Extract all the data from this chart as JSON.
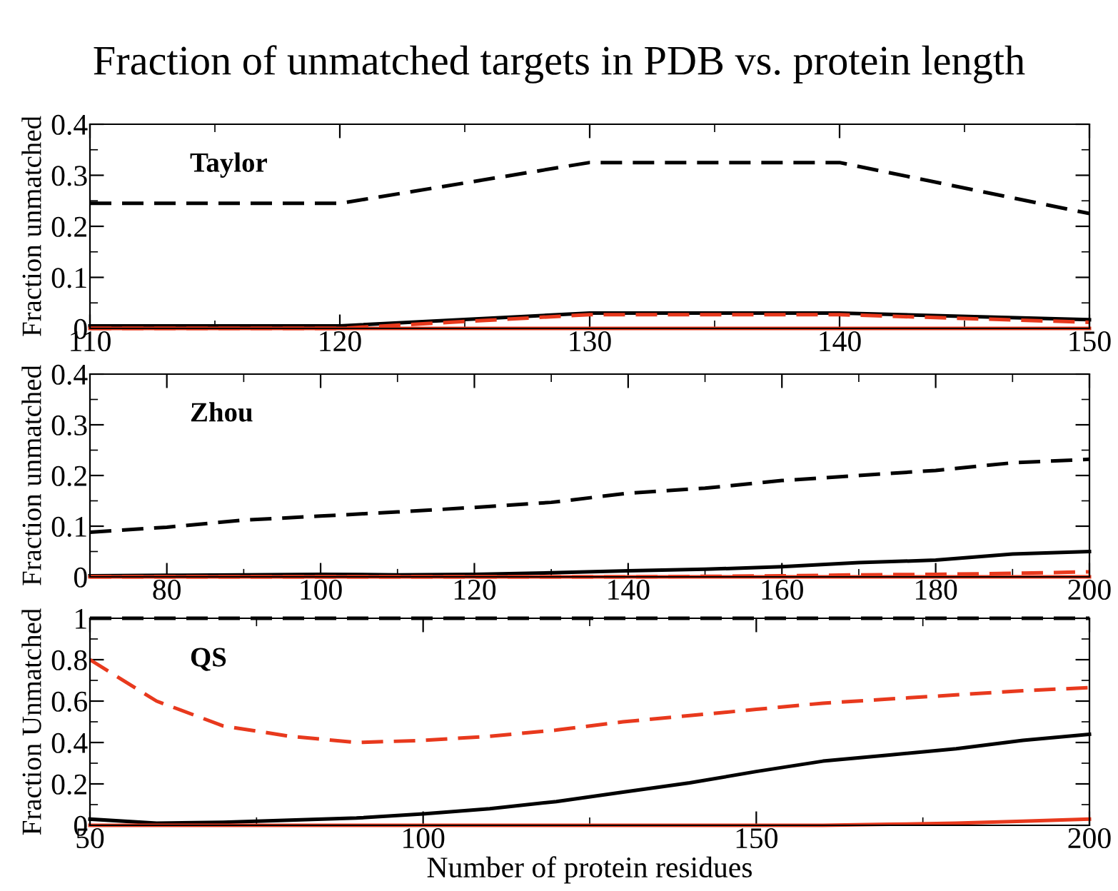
{
  "chart_data": [
    {
      "type": "line",
      "title": "Fraction of unmatched targets in PDB vs. protein length",
      "ylabel": "Fraction unmatched",
      "annotations": [
        "Taylor"
      ],
      "x": [
        110,
        120,
        130,
        140,
        150
      ],
      "xlim": [
        110,
        150
      ],
      "xticks": [
        110,
        120,
        130,
        140,
        150
      ],
      "ylim": [
        0,
        0.4
      ],
      "yticks": [
        0,
        0.1,
        0.2,
        0.3,
        0.4
      ],
      "grid": false,
      "marker": "none",
      "series": [
        {
          "color": "#000000",
          "line_style": "dashed",
          "values": [
            0.245,
            0.245,
            0.325,
            0.325,
            0.225
          ]
        },
        {
          "color": "#000000",
          "line_style": "solid",
          "values": [
            0.005,
            0.005,
            0.03,
            0.03,
            0.017
          ]
        },
        {
          "color": "#e8391d",
          "line_style": "dashed",
          "values": [
            0,
            0,
            0.027,
            0.027,
            0.012
          ]
        },
        {
          "color": "#e8391d",
          "line_style": "solid",
          "values": [
            0,
            0,
            0,
            0,
            0
          ]
        }
      ]
    },
    {
      "type": "line",
      "ylabel": "Fraction unmatched",
      "annotations": [
        "Zhou"
      ],
      "x": [
        70,
        80,
        90,
        100,
        110,
        120,
        130,
        140,
        150,
        160,
        170,
        180,
        190,
        200
      ],
      "xlim": [
        70,
        200
      ],
      "xticks": [
        80,
        100,
        120,
        140,
        160,
        180,
        200
      ],
      "ylim": [
        0,
        0.4
      ],
      "yticks": [
        0,
        0.1,
        0.2,
        0.3,
        0.4
      ],
      "grid": false,
      "marker": "none",
      "series": [
        {
          "color": "#000000",
          "line_style": "dashed",
          "values": [
            0.088,
            0.098,
            0.112,
            0.12,
            0.128,
            0.137,
            0.147,
            0.165,
            0.175,
            0.19,
            0.2,
            0.21,
            0.225,
            0.232
          ]
        },
        {
          "color": "#000000",
          "line_style": "solid",
          "values": [
            0.002,
            0.003,
            0.004,
            0.005,
            0.004,
            0.005,
            0.008,
            0.012,
            0.015,
            0.02,
            0.028,
            0.033,
            0.045,
            0.05
          ]
        },
        {
          "color": "#e8391d",
          "line_style": "dashed",
          "values": [
            0,
            0,
            0,
            0,
            0,
            0,
            0,
            0,
            0.001,
            0.002,
            0.004,
            0.005,
            0.007,
            0.01
          ]
        },
        {
          "color": "#e8391d",
          "line_style": "solid",
          "values": [
            0,
            0,
            0,
            0,
            0,
            0,
            0,
            0,
            0,
            0,
            0,
            0,
            0,
            0
          ]
        }
      ]
    },
    {
      "type": "line",
      "ylabel": "Fraction Unmatched",
      "xlabel": "Number of protein residues",
      "annotations": [
        "QS"
      ],
      "x": [
        50,
        60,
        70,
        80,
        90,
        100,
        110,
        120,
        130,
        140,
        150,
        160,
        170,
        180,
        190,
        200
      ],
      "xlim": [
        50,
        200
      ],
      "xticks": [
        50,
        100,
        150,
        200
      ],
      "ylim": [
        0,
        1
      ],
      "yticks": [
        0,
        0.2,
        0.4,
        0.6,
        0.8,
        1
      ],
      "grid": false,
      "marker": "none",
      "series": [
        {
          "color": "#000000",
          "line_style": "dashed",
          "values": [
            1,
            1,
            1,
            1,
            1,
            1,
            1,
            1,
            1,
            1,
            1,
            1,
            1,
            1,
            1,
            1
          ]
        },
        {
          "color": "#000000",
          "line_style": "solid",
          "values": [
            0.03,
            0.01,
            0.015,
            0.025,
            0.035,
            0.055,
            0.08,
            0.115,
            0.16,
            0.205,
            0.26,
            0.31,
            0.34,
            0.37,
            0.41,
            0.44
          ]
        },
        {
          "color": "#e8391d",
          "line_style": "dashed",
          "values": [
            0.8,
            0.6,
            0.48,
            0.43,
            0.4,
            0.41,
            0.43,
            0.46,
            0.5,
            0.53,
            0.56,
            0.59,
            0.61,
            0.63,
            0.65,
            0.665
          ]
        },
        {
          "color": "#e8391d",
          "line_style": "solid",
          "values": [
            0,
            0,
            0,
            0,
            0,
            0,
            0,
            0,
            0,
            0,
            0,
            0,
            0.005,
            0.01,
            0.02,
            0.03
          ]
        }
      ]
    }
  ]
}
